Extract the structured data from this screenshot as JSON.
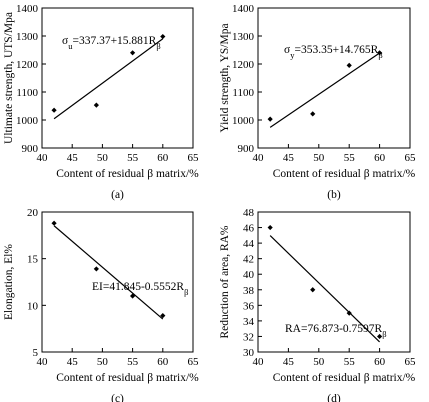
{
  "chart_data": [
    {
      "type": "scatter",
      "panel_label": "(a)",
      "xlabel": "Content of residual β matrix/%",
      "ylabel": "Ultimate strength, UTS/Mpa",
      "xlim": [
        40,
        65
      ],
      "ylim": [
        900,
        1400
      ],
      "xticks": [
        "40",
        "45",
        "50",
        "55",
        "60",
        "65"
      ],
      "yticks": [
        "900",
        "1000",
        "1100",
        "1200",
        "1300",
        "1400"
      ],
      "points": [
        {
          "x": 42,
          "y": 1035
        },
        {
          "x": 49,
          "y": 1053
        },
        {
          "x": 55,
          "y": 1240
        },
        {
          "x": 60,
          "y": 1298
        }
      ],
      "fit_line": {
        "x_start": 42,
        "x_end": 60,
        "intercept": 337.37,
        "slope": 15.881
      },
      "equation": {
        "main": "σ",
        "main_sub": "u",
        "rest": "=337.37+15.881R",
        "rest_sub": "β"
      },
      "grid": false
    },
    {
      "type": "scatter",
      "panel_label": "(b)",
      "xlabel": "Content of residual β matrix/%",
      "ylabel": "Yield strength, YS/Mpa",
      "xlim": [
        40,
        65
      ],
      "ylim": [
        900,
        1400
      ],
      "xticks": [
        "40",
        "45",
        "50",
        "55",
        "60",
        "65"
      ],
      "yticks": [
        "900",
        "1000",
        "1100",
        "1200",
        "1300",
        "1400"
      ],
      "points": [
        {
          "x": 42,
          "y": 1003
        },
        {
          "x": 49,
          "y": 1022
        },
        {
          "x": 55,
          "y": 1195
        },
        {
          "x": 60,
          "y": 1240
        }
      ],
      "fit_line": {
        "x_start": 42,
        "x_end": 60,
        "intercept": 353.35,
        "slope": 14.765
      },
      "equation": {
        "main": "σ",
        "main_sub": "y",
        "rest": "=353.35+14.765R",
        "rest_sub": "β"
      },
      "grid": false
    },
    {
      "type": "scatter",
      "panel_label": "(c)",
      "xlabel": "Content of residual β matrix/%",
      "ylabel": "Elongation, El%",
      "xlim": [
        40,
        65
      ],
      "ylim": [
        5,
        20
      ],
      "xticks": [
        "40",
        "45",
        "50",
        "55",
        "60",
        "65"
      ],
      "yticks": [
        "5",
        "10",
        "15",
        "20"
      ],
      "points": [
        {
          "x": 42,
          "y": 18.8
        },
        {
          "x": 49,
          "y": 13.9
        },
        {
          "x": 55,
          "y": 11.0
        },
        {
          "x": 60,
          "y": 8.9
        }
      ],
      "fit_line": {
        "x_start": 42,
        "x_end": 60,
        "intercept": 41.845,
        "slope": -0.5552
      },
      "equation": {
        "main": "EI=41.845-0.5552R",
        "main_sub": "β",
        "rest": "",
        "rest_sub": ""
      },
      "grid": false
    },
    {
      "type": "scatter",
      "panel_label": "(d)",
      "xlabel": "Content of residual β matrix/%",
      "ylabel": "Reduction of area, RA%",
      "xlim": [
        40,
        65
      ],
      "ylim": [
        30,
        48
      ],
      "xticks": [
        "40",
        "45",
        "50",
        "55",
        "60",
        "65"
      ],
      "yticks": [
        "30",
        "32",
        "34",
        "36",
        "38",
        "40",
        "42",
        "44",
        "46",
        "48"
      ],
      "points": [
        {
          "x": 42,
          "y": 46.0
        },
        {
          "x": 49,
          "y": 38.0
        },
        {
          "x": 55,
          "y": 35.0
        },
        {
          "x": 60,
          "y": 32.0
        }
      ],
      "fit_line": {
        "x_start": 42,
        "x_end": 60,
        "intercept": 76.873,
        "slope": -0.7597
      },
      "equation": {
        "main": "RA=76.873-0.7597R",
        "main_sub": "β",
        "rest": "",
        "rest_sub": ""
      },
      "grid": false
    }
  ]
}
